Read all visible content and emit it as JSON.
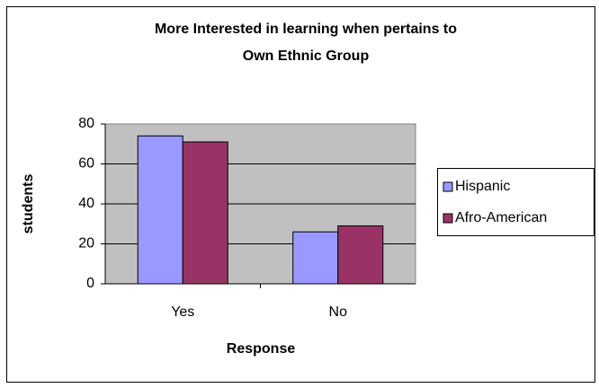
{
  "chart_data": {
    "type": "bar",
    "title": [
      "More Interested in learning when pertains to",
      "Own Ethnic Group"
    ],
    "x_label": "Response",
    "y_label": "students",
    "categories": [
      "Yes",
      "No"
    ],
    "series": [
      {
        "name": "Hispanic",
        "color": "#9999ff",
        "values": [
          74,
          26
        ]
      },
      {
        "name": "Afro-American",
        "color": "#993366",
        "values": [
          71,
          29
        ]
      }
    ],
    "ylim": [
      0,
      80
    ],
    "yticks": [
      0,
      20,
      40,
      60,
      80
    ],
    "grid": true,
    "legend": "right"
  }
}
